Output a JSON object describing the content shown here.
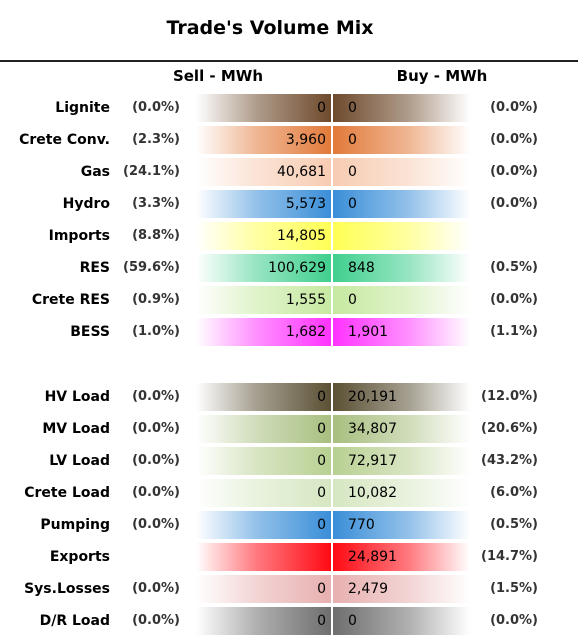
{
  "header": {
    "title": "Trade's Volume Mix"
  },
  "table": {
    "columns": {
      "sell": "Sell - MWh",
      "buy": "Buy - MWh"
    },
    "rows": [
      {
        "label": "Lignite",
        "sell_pct": "(0.0%)",
        "sell": "0",
        "buy": "0",
        "buy_pct": "(0.0%)",
        "color": "#6e4a2c"
      },
      {
        "label": "Crete Conv.",
        "sell_pct": "(2.3%)",
        "sell": "3,960",
        "buy": "0",
        "buy_pct": "(0.0%)",
        "color": "#e27a3a"
      },
      {
        "label": "Gas",
        "sell_pct": "(24.1%)",
        "sell": "40,681",
        "buy": "0",
        "buy_pct": "(0.0%)",
        "color": "#f7ccb2"
      },
      {
        "label": "Hydro",
        "sell_pct": "(3.3%)",
        "sell": "5,573",
        "buy": "0",
        "buy_pct": "(0.0%)",
        "color": "#3a8ed8"
      },
      {
        "label": "Imports",
        "sell_pct": "(8.8%)",
        "sell": "14,805",
        "color": "#ffff55"
      },
      {
        "label": "RES",
        "sell_pct": "(59.6%)",
        "sell": "100,629",
        "buy": "848",
        "buy_pct": "(0.5%)",
        "color": "#40cf8e"
      },
      {
        "label": "Crete RES",
        "sell_pct": "(0.9%)",
        "sell": "1,555",
        "buy": "0",
        "buy_pct": "(0.0%)",
        "color": "#c6e9a0"
      },
      {
        "label": "BESS",
        "sell_pct": "(1.0%)",
        "sell": "1,682",
        "buy": "1,901",
        "buy_pct": "(1.1%)",
        "color": "#ff33ff"
      },
      {
        "label": "HV Load",
        "sell_pct": "(0.0%)",
        "sell": "0",
        "buy": "20,191",
        "buy_pct": "(12.0%)",
        "color": "#5a5034"
      },
      {
        "label": "MV Load",
        "sell_pct": "(0.0%)",
        "sell": "0",
        "buy": "34,807",
        "buy_pct": "(20.6%)",
        "color": "#a8bf80"
      },
      {
        "label": "LV Load",
        "sell_pct": "(0.0%)",
        "sell": "0",
        "buy": "72,917",
        "buy_pct": "(43.2%)",
        "color": "#b8d092"
      },
      {
        "label": "Crete Load",
        "sell_pct": "(0.0%)",
        "sell": "0",
        "buy": "10,082",
        "buy_pct": "(6.0%)",
        "color": "#d6e7c2"
      },
      {
        "label": "Pumping",
        "sell_pct": "(0.0%)",
        "sell": "0",
        "buy": "770",
        "buy_pct": "(0.5%)",
        "color": "#3a8ed8"
      },
      {
        "label": "Exports",
        "buy": "24,891",
        "buy_pct": "(14.7%)",
        "color": "#ff0a14"
      },
      {
        "label": "Sys.Losses",
        "sell_pct": "(0.0%)",
        "sell": "0",
        "buy": "2,479",
        "buy_pct": "(1.5%)",
        "color": "#e8b0b0"
      },
      {
        "label": "D/R Load",
        "sell_pct": "(0.0%)",
        "sell": "0",
        "buy": "0",
        "buy_pct": "(0.0%)",
        "color": "#6e6e6e"
      }
    ]
  }
}
